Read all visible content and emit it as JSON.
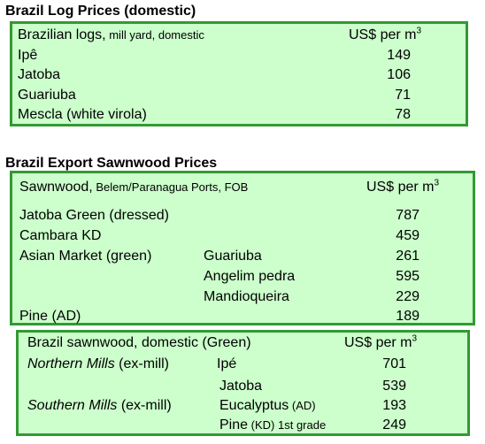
{
  "logs": {
    "title": "Brazil Log Prices (domestic)",
    "header_label": "Brazilian logs,",
    "header_sub": " mill yard, domestic",
    "unit": "US$ per m",
    "unit_sup": "3",
    "rows": [
      {
        "name": "Ipê",
        "price": "149"
      },
      {
        "name": "Jatoba",
        "price": "106"
      },
      {
        "name": "Guariuba",
        "price": "71"
      },
      {
        "name": "Mescla (white virola)",
        "price": "78"
      }
    ]
  },
  "export": {
    "title": "Brazil Export Sawnwood Prices",
    "header_label": "Sawnwood,",
    "header_sub": " Belem/Paranagua Ports, FOB",
    "unit": "US$ per m",
    "unit_sup": "3",
    "rows": [
      {
        "name": "Jatoba Green (dressed)",
        "species": "",
        "price": "787"
      },
      {
        "name": "Cambara KD",
        "species": "",
        "price": "459"
      },
      {
        "name": "Asian Market (green)",
        "species": "Guariuba",
        "price": "261"
      },
      {
        "name": "",
        "species": "Angelim pedra",
        "price": "595"
      },
      {
        "name": "",
        "species": "Mandioqueira",
        "price": "229"
      },
      {
        "name": "Pine (AD)",
        "species": "",
        "price": "189"
      }
    ]
  },
  "domestic": {
    "header_label": "Brazil sawnwood, domestic (Green)",
    "unit": "US$ per m",
    "unit_sup": "3",
    "northern_italic": "Northern Mills",
    "northern_rest": " (ex-mill)",
    "southern_italic": "Southern Mills",
    "southern_rest": " (ex-mill)",
    "rows": [
      {
        "species": "Ipé",
        "species_sub": "",
        "species_tail": "",
        "price": "701"
      },
      {
        "species": "Jatoba",
        "species_sub": "",
        "species_tail": "",
        "price": "539"
      },
      {
        "species": "Eucalyptus",
        "species_sub": " (AD)",
        "species_tail": "",
        "price": "193"
      },
      {
        "species": "Pine",
        "species_sub": " (KD)",
        "species_tail": " 1st grade",
        "price": "249"
      }
    ]
  },
  "colors": {
    "box_fill": "#ccffcc",
    "box_border": "#339933"
  }
}
